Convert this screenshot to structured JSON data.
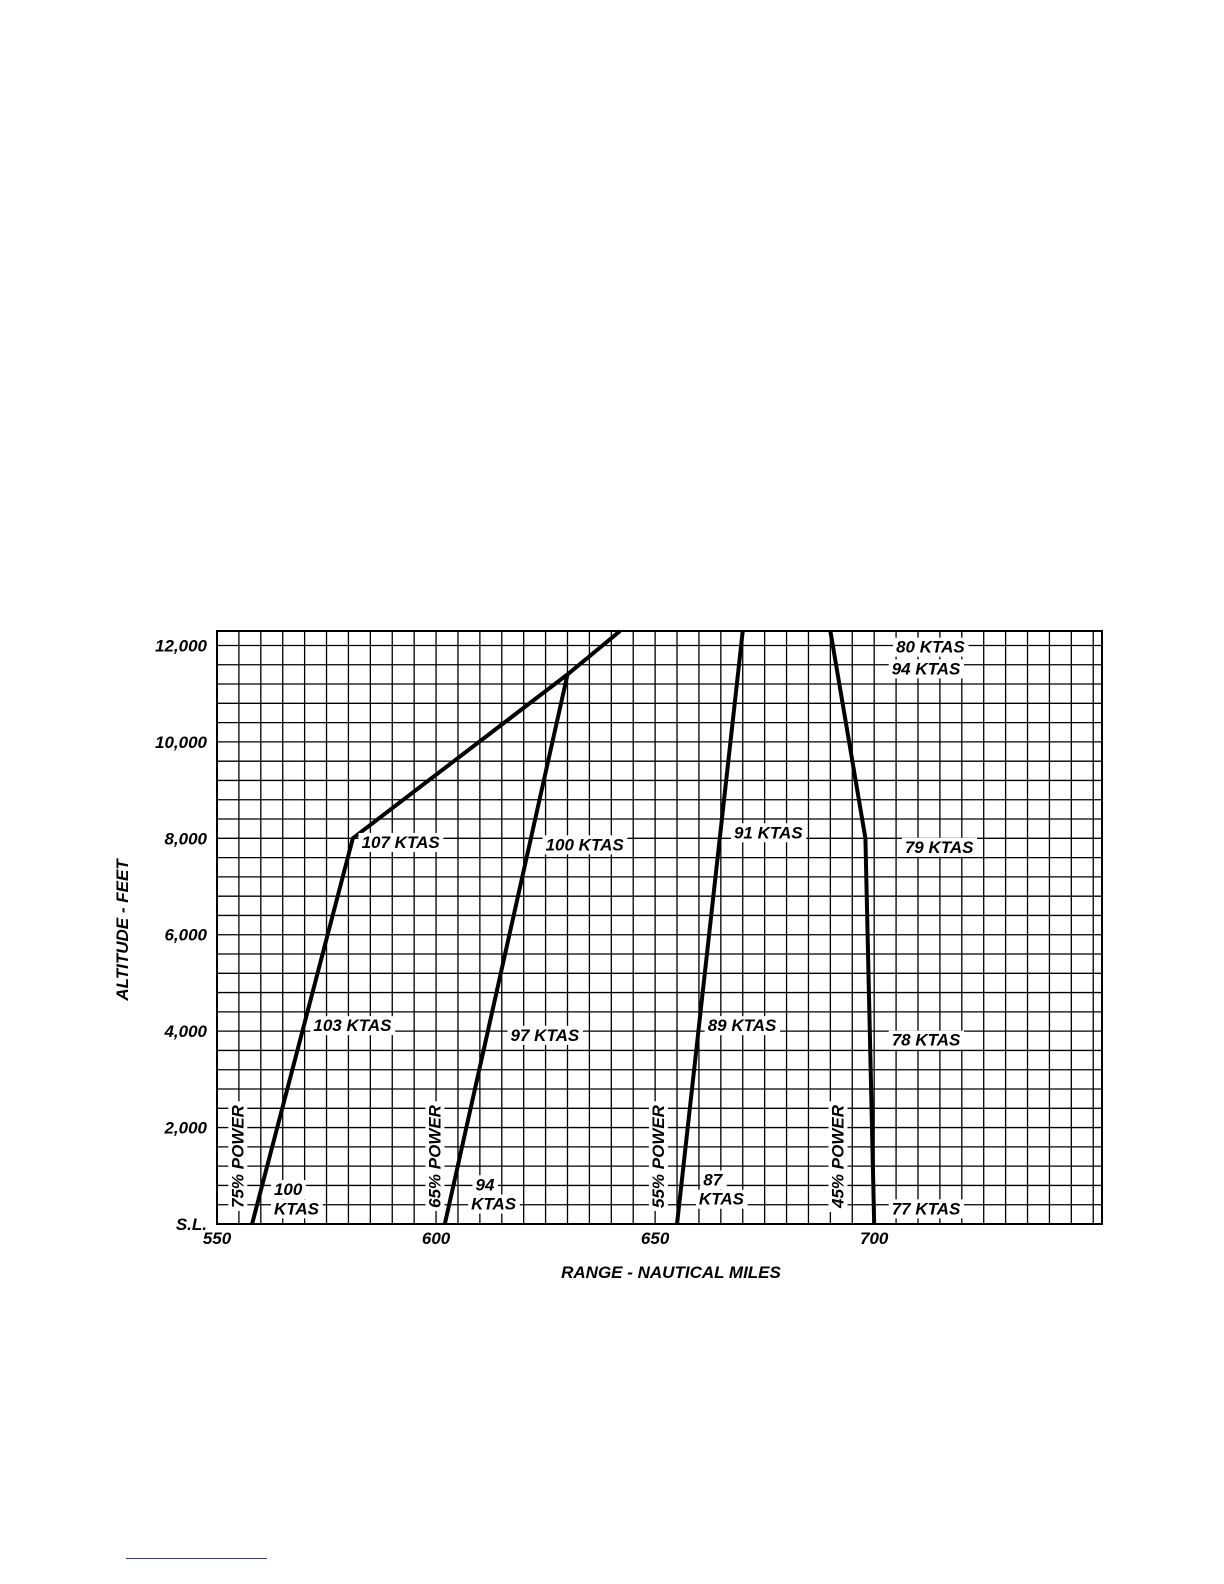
{
  "chart_data": {
    "type": "line",
    "xlabel": "RANGE - NAUTICAL MILES",
    "ylabel": "ALTITUDE - FEET",
    "xlim": [
      550,
      752
    ],
    "ylim": [
      0,
      12300
    ],
    "grid": true,
    "x_ticks": [
      {
        "value": 550,
        "label": "550"
      },
      {
        "value": 600,
        "label": "600"
      },
      {
        "value": 650,
        "label": "650"
      },
      {
        "value": 700,
        "label": "700"
      }
    ],
    "y_ticks": [
      {
        "value": 0,
        "label": "S.L."
      },
      {
        "value": 2000,
        "label": "2,000"
      },
      {
        "value": 4000,
        "label": "4,000"
      },
      {
        "value": 6000,
        "label": "6,000"
      },
      {
        "value": 8000,
        "label": "8,000"
      },
      {
        "value": 10000,
        "label": "10,000"
      },
      {
        "value": 12000,
        "label": "12,000"
      }
    ],
    "series": [
      {
        "name": "75% POWER",
        "points": [
          [
            558,
            0
          ],
          [
            581,
            8000
          ],
          [
            630,
            11400
          ],
          [
            642,
            12300
          ]
        ]
      },
      {
        "name": "65% POWER",
        "points": [
          [
            602,
            0
          ],
          [
            630,
            11400
          ]
        ]
      },
      {
        "name": "55% POWER",
        "points": [
          [
            655,
            0
          ],
          [
            670,
            12300
          ]
        ]
      },
      {
        "name": "45% POWER",
        "points": [
          [
            700,
            0
          ],
          [
            698,
            8000
          ],
          [
            690,
            12300
          ]
        ]
      }
    ],
    "annotations": [
      {
        "text": "100",
        "x": 563,
        "y": 600
      },
      {
        "text": "KTAS",
        "x": 563,
        "y": 200
      },
      {
        "text": "103  KTAS",
        "x": 572,
        "y": 4000
      },
      {
        "text": "107 KTAS",
        "x": 583,
        "y": 7800
      },
      {
        "text": "94",
        "x": 609,
        "y": 700
      },
      {
        "text": "KTAS",
        "x": 608,
        "y": 300
      },
      {
        "text": "97 KTAS",
        "x": 617,
        "y": 3800
      },
      {
        "text": "100 KTAS",
        "x": 625,
        "y": 7750
      },
      {
        "text": "87",
        "x": 661,
        "y": 800
      },
      {
        "text": "KTAS",
        "x": 660,
        "y": 400
      },
      {
        "text": "89 KTAS",
        "x": 662,
        "y": 4000
      },
      {
        "text": "91 KTAS",
        "x": 668,
        "y": 8000
      },
      {
        "text": "80 KTAS",
        "x": 705,
        "y": 11850
      },
      {
        "text": "94 KTAS",
        "x": 704,
        "y": 11400
      },
      {
        "text": "79 KTAS",
        "x": 707,
        "y": 7700
      },
      {
        "text": "78 KTAS",
        "x": 704,
        "y": 3700
      },
      {
        "text": "77 KTAS",
        "x": 704,
        "y": 200
      }
    ],
    "power_labels": [
      {
        "text": "75% POWER",
        "x": 556,
        "y": 1400
      },
      {
        "text": "65% POWER",
        "x": 601,
        "y": 1400
      },
      {
        "text": "55% POWER",
        "x": 652,
        "y": 1400
      },
      {
        "text": "45% POWER",
        "x": 693,
        "y": 1400
      }
    ]
  }
}
